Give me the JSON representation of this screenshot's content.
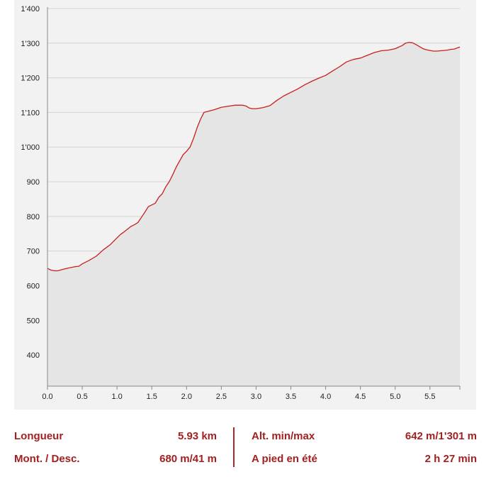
{
  "colors": {
    "line": "#c8201e",
    "fill": "#e5e5e5",
    "panel": "#f2f2f2",
    "grid": "#d4d4d4",
    "accent": "#a32020"
  },
  "chart_data": {
    "type": "area",
    "title": "",
    "xlabel": "",
    "ylabel": "",
    "xlim": [
      0,
      5.93
    ],
    "ylim": [
      310,
      1400
    ],
    "x_ticks": [
      {
        "value": 0,
        "label": "0.0"
      },
      {
        "value": 0.5,
        "label": "0.5"
      },
      {
        "value": 1.0,
        "label": "1.0"
      },
      {
        "value": 1.5,
        "label": "1.5"
      },
      {
        "value": 2.0,
        "label": "2.0"
      },
      {
        "value": 2.5,
        "label": "2.5"
      },
      {
        "value": 3.0,
        "label": "3.0"
      },
      {
        "value": 3.5,
        "label": "3.5"
      },
      {
        "value": 4.0,
        "label": "4.0"
      },
      {
        "value": 4.5,
        "label": "4.5"
      },
      {
        "value": 5.0,
        "label": "5.0"
      },
      {
        "value": 5.5,
        "label": "5.5"
      }
    ],
    "y_ticks": [
      {
        "value": 400,
        "label": "400"
      },
      {
        "value": 500,
        "label": "500"
      },
      {
        "value": 600,
        "label": "600"
      },
      {
        "value": 700,
        "label": "700"
      },
      {
        "value": 800,
        "label": "800"
      },
      {
        "value": 900,
        "label": "900"
      },
      {
        "value": 1000,
        "label": "1'000"
      },
      {
        "value": 1100,
        "label": "1'100"
      },
      {
        "value": 1200,
        "label": "1'200"
      },
      {
        "value": 1300,
        "label": "1'300"
      },
      {
        "value": 1400,
        "label": "1'400"
      }
    ],
    "grid": true,
    "series": [
      {
        "x": [
          0,
          0.05,
          0.1,
          0.15,
          0.2,
          0.3,
          0.4,
          0.45,
          0.5,
          0.6,
          0.7,
          0.75,
          0.8,
          0.9,
          1.0,
          1.05,
          1.1,
          1.2,
          1.25,
          1.3,
          1.35,
          1.4,
          1.45,
          1.5,
          1.55,
          1.6,
          1.65,
          1.7,
          1.75,
          1.8,
          1.85,
          1.9,
          1.95,
          2.0,
          2.05,
          2.1,
          2.15,
          2.2,
          2.25,
          2.4,
          2.5,
          2.6,
          2.7,
          2.75,
          2.8,
          2.85,
          2.9,
          2.95,
          3.0,
          3.1,
          3.2,
          3.3,
          3.4,
          3.5,
          3.6,
          3.7,
          3.8,
          3.9,
          4.0,
          4.1,
          4.2,
          4.3,
          4.4,
          4.5,
          4.6,
          4.7,
          4.8,
          4.9,
          5.0,
          5.1,
          5.15,
          5.2,
          5.25,
          5.3,
          5.35,
          5.4,
          5.45,
          5.5,
          5.55,
          5.6,
          5.65,
          5.7,
          5.75,
          5.8,
          5.85,
          5.9,
          5.93
        ],
        "y": [
          650,
          645,
          643,
          643,
          646,
          651,
          655,
          656,
          663,
          673,
          685,
          694,
          703,
          718,
          738,
          748,
          755,
          771,
          776,
          782,
          797,
          812,
          828,
          833,
          838,
          855,
          865,
          885,
          900,
          920,
          942,
          960,
          978,
          988,
          1000,
          1025,
          1055,
          1080,
          1100,
          1108,
          1115,
          1118,
          1121,
          1121,
          1121,
          1119,
          1113,
          1111,
          1111,
          1114,
          1120,
          1135,
          1148,
          1158,
          1168,
          1180,
          1190,
          1199,
          1207,
          1220,
          1232,
          1246,
          1253,
          1257,
          1265,
          1273,
          1278,
          1280,
          1284,
          1293,
          1300,
          1302,
          1301,
          1296,
          1290,
          1284,
          1281,
          1279,
          1277,
          1277,
          1278,
          1279,
          1280,
          1282,
          1283,
          1287,
          1289
        ]
      }
    ]
  },
  "stats": {
    "distance_label": "Longueur",
    "distance_value": "5.93 km",
    "ascent_label": "Mont. / Desc.",
    "ascent_value": "680 m/41 m",
    "altitude_label": "Alt. min/max",
    "altitude_value": "642 m/1'301 m",
    "duration_label": "A pied en été",
    "duration_value": "2 h 27 min"
  }
}
